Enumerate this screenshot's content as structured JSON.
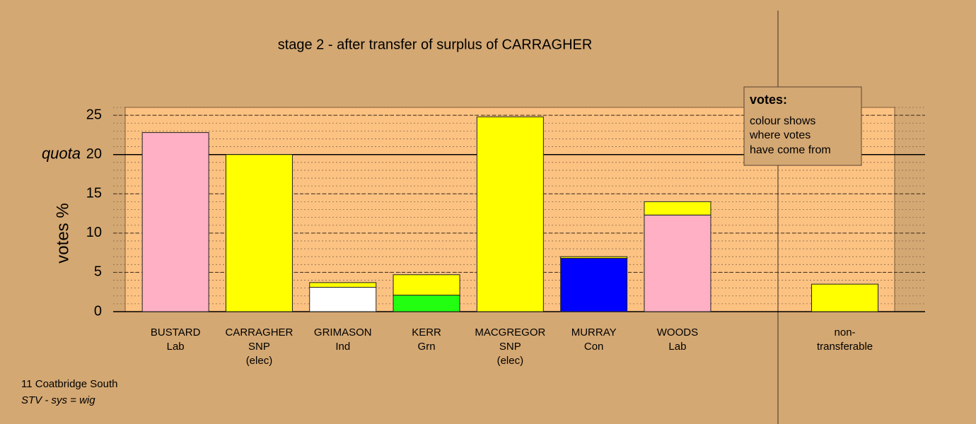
{
  "chart_data": {
    "type": "stacked_bar",
    "title": "stage 2 - after transfer of surplus of CARRAGHER",
    "y_label": "votes %",
    "categories": [
      [
        "BUSTARD",
        "Lab"
      ],
      [
        "CARRAGHER",
        "SNP",
        "(elec)"
      ],
      [
        "GRIMASON",
        "Ind"
      ],
      [
        "KERR",
        "Grn"
      ],
      [
        "MACGREGOR",
        "SNP",
        "(elec)"
      ],
      [
        "MURRAY",
        "Con"
      ],
      [
        "WOODS",
        "Lab"
      ],
      null,
      [
        "non-",
        "transferable"
      ]
    ],
    "series": [
      {
        "color": "#ffb0c4",
        "values": [
          22.8,
          null,
          null,
          null,
          null,
          null,
          12.3,
          null,
          null
        ]
      },
      {
        "color": "#ffffff",
        "values": [
          null,
          null,
          3.1,
          null,
          null,
          null,
          null,
          null,
          null
        ]
      },
      {
        "color": "#22ff11",
        "values": [
          null,
          null,
          null,
          2.1,
          null,
          null,
          null,
          null,
          null
        ]
      },
      {
        "color": "#0000ff",
        "values": [
          null,
          null,
          null,
          null,
          null,
          6.8,
          null,
          null,
          null
        ]
      },
      {
        "color": "#ffff00",
        "values": [
          null,
          20,
          0.6,
          2.6,
          24.8,
          0.2,
          1.7,
          null,
          3.5
        ]
      }
    ],
    "ylim": [
      0,
      26
    ],
    "yticks": [
      0,
      5,
      10,
      15,
      20,
      25
    ],
    "minor_tick_step": 1,
    "grid": true,
    "quota": 20,
    "quota_label": "quota",
    "legend": {
      "title": "votes:",
      "lines": [
        "colour shows",
        "where votes",
        "have come from"
      ]
    },
    "footer": [
      "11 Coatbridge South",
      "STV - sys = wig"
    ]
  }
}
